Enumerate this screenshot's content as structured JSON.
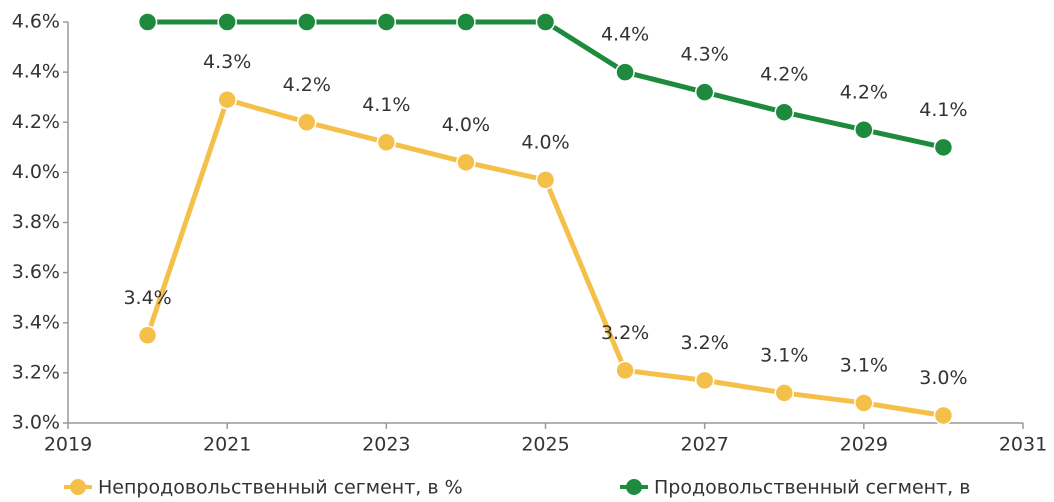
{
  "chart_data": {
    "type": "line",
    "x": [
      2020,
      2021,
      2022,
      2023,
      2024,
      2025,
      2026,
      2027,
      2028,
      2029,
      2030
    ],
    "series": [
      {
        "name": "Непродовольственный сегмент, в %",
        "color": "#f5c04a",
        "values": [
          3.35,
          4.29,
          4.2,
          4.12,
          4.04,
          3.97,
          3.21,
          3.17,
          3.12,
          3.08,
          3.03
        ],
        "value_labels": [
          "3.4%",
          "4.3%",
          "4.2%",
          "4.1%",
          "4.0%",
          "4.0%",
          "3.2%",
          "3.2%",
          "3.1%",
          "3.1%",
          "3.0%"
        ]
      },
      {
        "name": "Продовольственный сегмент, в",
        "color": "#1e8a3e",
        "values": [
          4.6,
          4.6,
          4.6,
          4.6,
          4.6,
          4.6,
          4.4,
          4.32,
          4.24,
          4.17,
          4.1
        ],
        "value_labels": [
          null,
          null,
          null,
          null,
          null,
          null,
          "4.4%",
          "4.3%",
          "4.2%",
          "4.2%",
          "4.1%"
        ]
      }
    ],
    "xlim": [
      2019,
      2031
    ],
    "xticks": [
      2019,
      2021,
      2023,
      2025,
      2027,
      2029,
      2031
    ],
    "ylim": [
      3.0,
      4.6
    ],
    "yticks": [
      {
        "value": 3.0,
        "label": "3.0%"
      },
      {
        "value": 3.2,
        "label": "3.2%"
      },
      {
        "value": 3.4,
        "label": "3.4%"
      },
      {
        "value": 3.6,
        "label": "3.6%"
      },
      {
        "value": 3.8,
        "label": "3.8%"
      },
      {
        "value": 4.0,
        "label": "4.0%"
      },
      {
        "value": 4.2,
        "label": "4.2%"
      },
      {
        "value": 4.4,
        "label": "4.4%"
      },
      {
        "value": 4.6,
        "label": "4.6%"
      }
    ],
    "grid": false,
    "legend": "bottom"
  }
}
